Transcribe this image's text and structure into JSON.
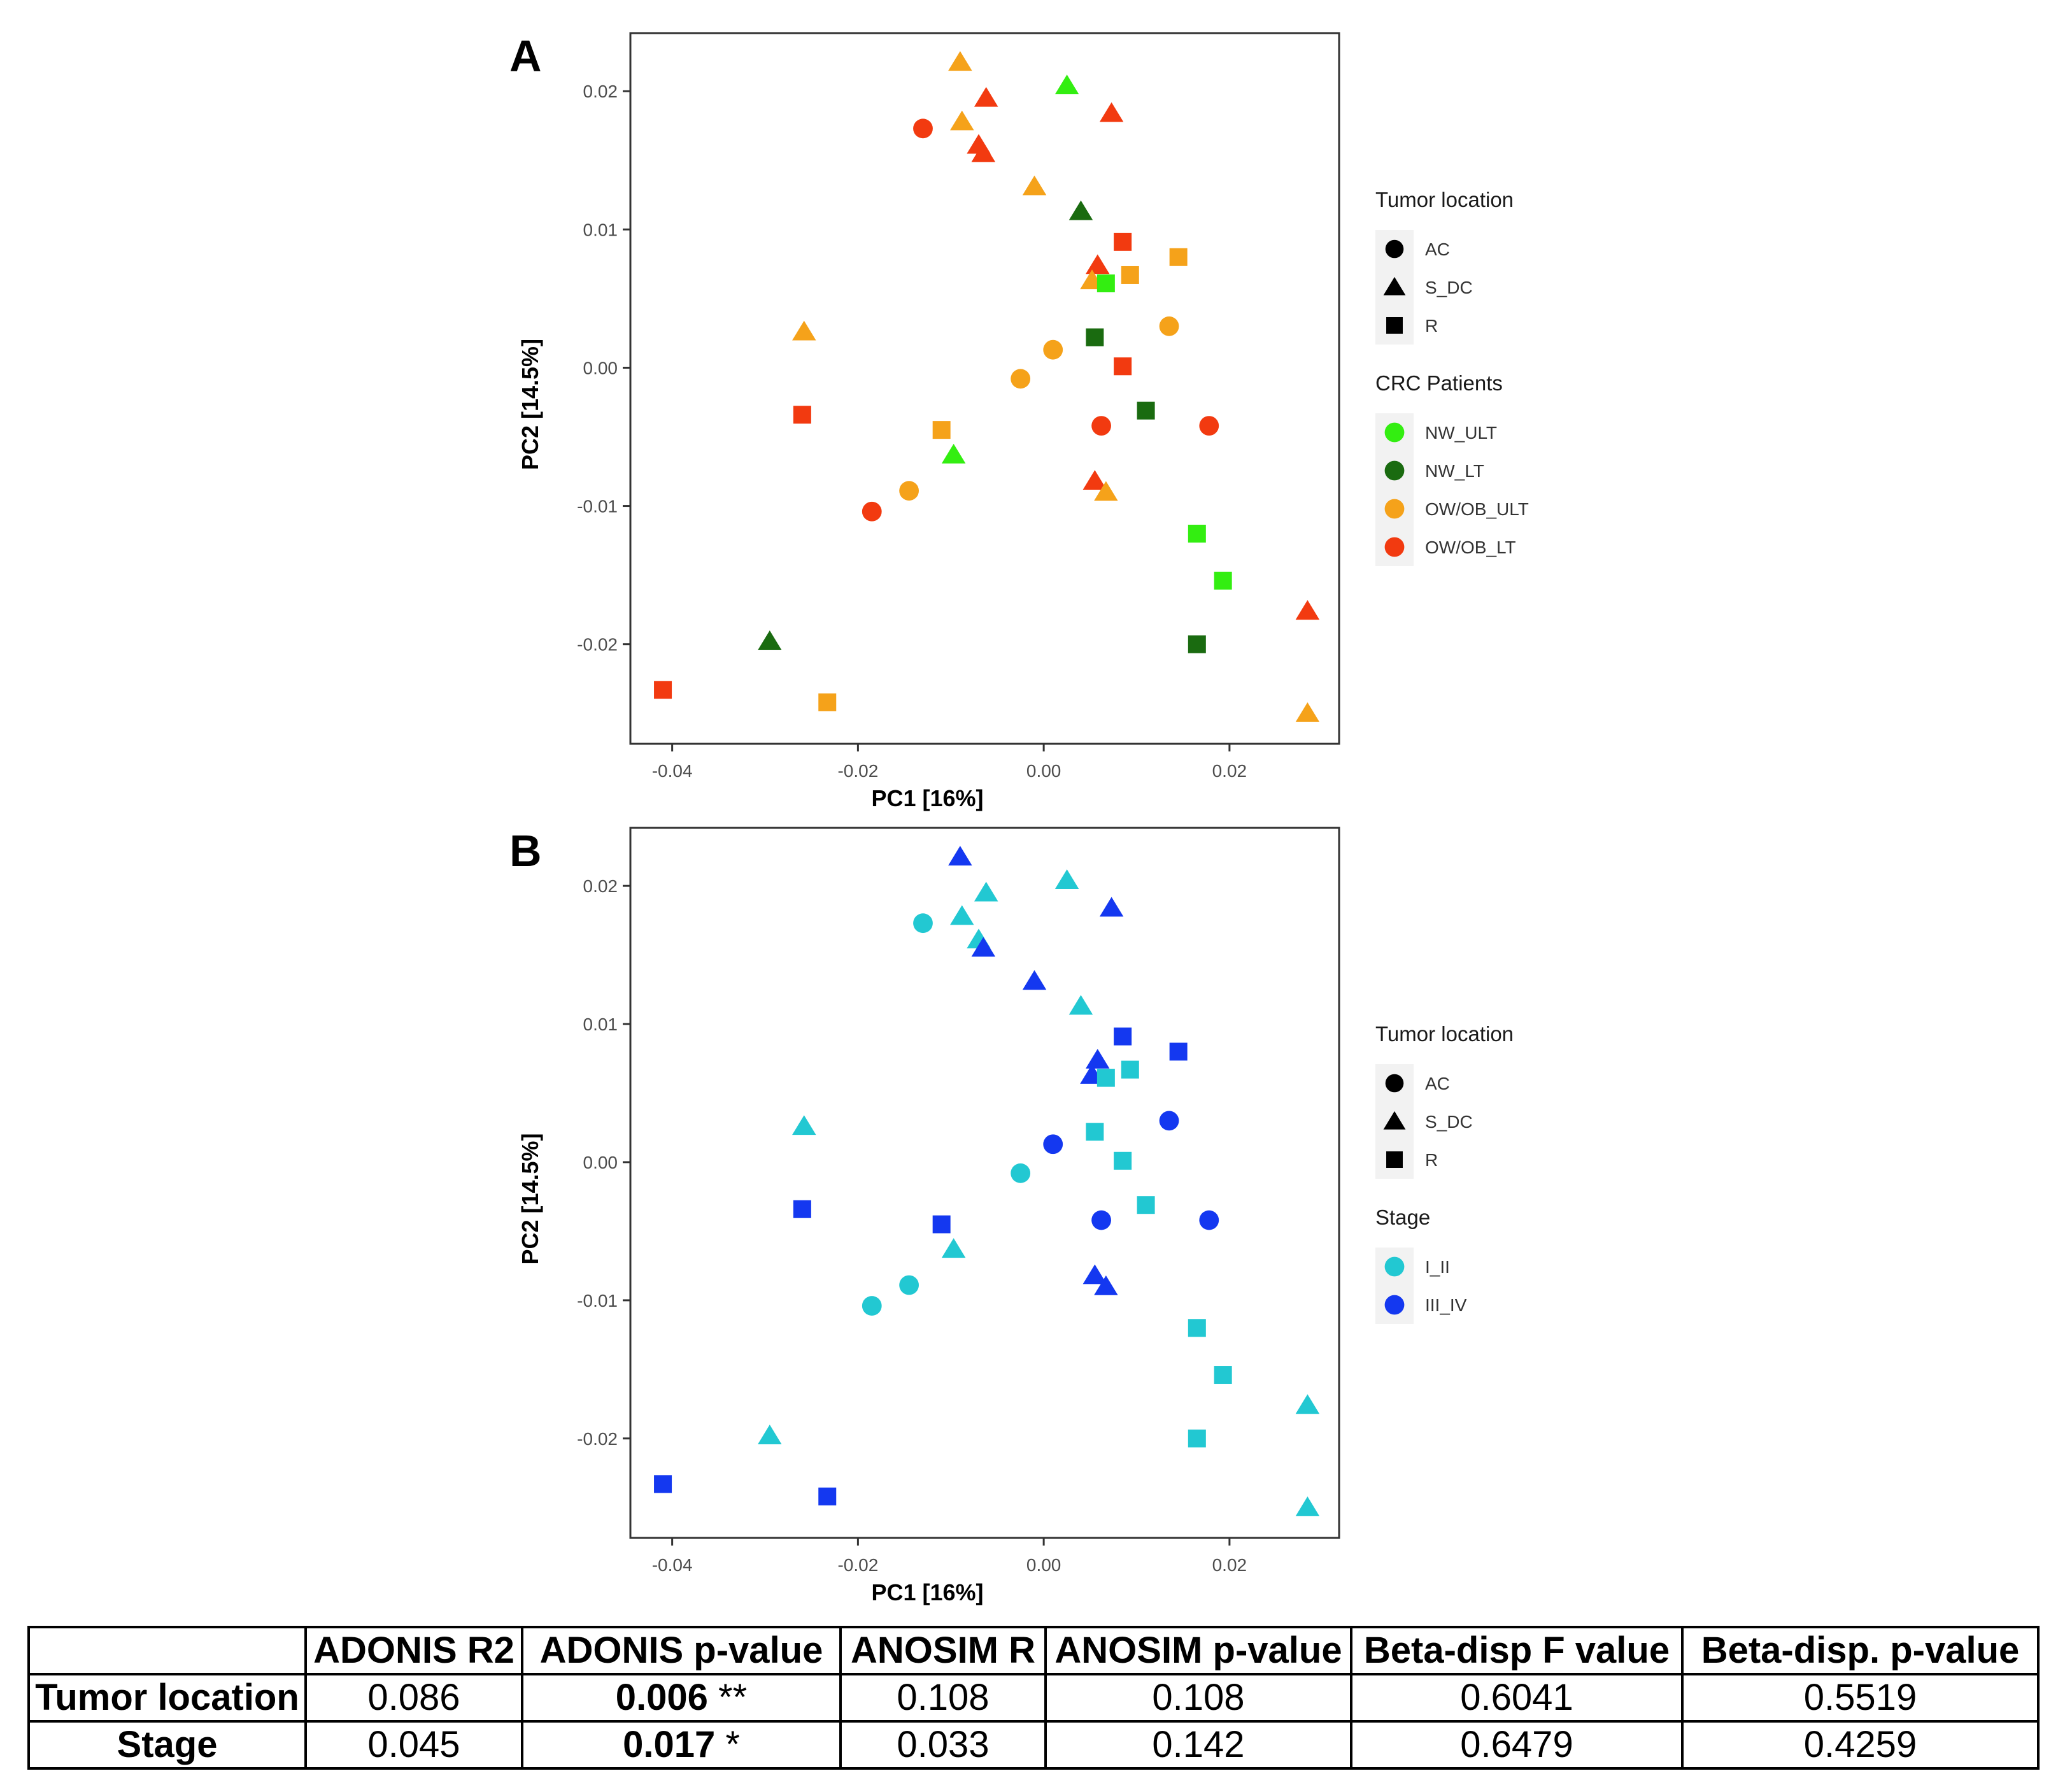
{
  "chart_data": [
    {
      "panel": "A",
      "type": "scatter",
      "xlabel": "PC1 [16%]",
      "ylabel": "PC2 [14.5%]",
      "xlim": [
        -0.0445,
        0.0318
      ],
      "ylim": [
        -0.0272,
        0.0242
      ],
      "x_ticks": [
        -0.04,
        -0.02,
        0.0,
        0.02
      ],
      "x_tick_labels": [
        "-0.04",
        "-0.02",
        "0.00",
        "0.02"
      ],
      "y_ticks": [
        -0.02,
        -0.01,
        0.0,
        0.01,
        0.02
      ],
      "y_tick_labels": [
        "-0.02",
        "-0.01",
        "0.00",
        "0.01",
        "0.02"
      ],
      "shape_legend_title": "Tumor location",
      "shape_legend": [
        {
          "label": "AC",
          "shape": "circle"
        },
        {
          "label": "S_DC",
          "shape": "triangle"
        },
        {
          "label": "R",
          "shape": "square"
        }
      ],
      "color_legend_title": "CRC Patients",
      "color_legend": [
        {
          "label": "NW_ULT",
          "color": "#33ee11"
        },
        {
          "label": "NW_LT",
          "color": "#1a6b10"
        },
        {
          "label": "OW/OB_ULT",
          "color": "#f5a21a"
        },
        {
          "label": "OW/OB_LT",
          "color": "#f23a10"
        }
      ],
      "points": [
        {
          "x": -0.009,
          "y": 0.0221,
          "shape": "triangle",
          "group": "OW/OB_ULT"
        },
        {
          "x": 0.0025,
          "y": 0.0204,
          "shape": "triangle",
          "group": "NW_ULT"
        },
        {
          "x": -0.0062,
          "y": 0.0195,
          "shape": "triangle",
          "group": "OW/OB_LT"
        },
        {
          "x": 0.0073,
          "y": 0.0184,
          "shape": "triangle",
          "group": "OW/OB_LT"
        },
        {
          "x": -0.0088,
          "y": 0.0178,
          "shape": "triangle",
          "group": "OW/OB_ULT"
        },
        {
          "x": -0.013,
          "y": 0.0173,
          "shape": "circle",
          "group": "OW/OB_LT"
        },
        {
          "x": -0.007,
          "y": 0.0161,
          "shape": "triangle",
          "group": "OW/OB_LT"
        },
        {
          "x": -0.0065,
          "y": 0.0155,
          "shape": "triangle",
          "group": "OW/OB_LT"
        },
        {
          "x": -0.001,
          "y": 0.0131,
          "shape": "triangle",
          "group": "OW/OB_ULT"
        },
        {
          "x": 0.004,
          "y": 0.0113,
          "shape": "triangle",
          "group": "NW_LT"
        },
        {
          "x": 0.0085,
          "y": 0.0091,
          "shape": "square",
          "group": "OW/OB_LT"
        },
        {
          "x": 0.0145,
          "y": 0.008,
          "shape": "square",
          "group": "OW/OB_ULT"
        },
        {
          "x": 0.0058,
          "y": 0.0074,
          "shape": "triangle",
          "group": "OW/OB_LT"
        },
        {
          "x": 0.0093,
          "y": 0.0067,
          "shape": "square",
          "group": "OW/OB_ULT"
        },
        {
          "x": 0.0052,
          "y": 0.0063,
          "shape": "triangle",
          "group": "OW/OB_ULT"
        },
        {
          "x": 0.0067,
          "y": 0.0061,
          "shape": "square",
          "group": "NW_ULT"
        },
        {
          "x": 0.0135,
          "y": 0.003,
          "shape": "circle",
          "group": "OW/OB_ULT"
        },
        {
          "x": -0.0258,
          "y": 0.0026,
          "shape": "triangle",
          "group": "OW/OB_ULT"
        },
        {
          "x": 0.0055,
          "y": 0.0022,
          "shape": "square",
          "group": "NW_LT"
        },
        {
          "x": 0.001,
          "y": 0.0013,
          "shape": "circle",
          "group": "OW/OB_ULT"
        },
        {
          "x": 0.0085,
          "y": 0.0001,
          "shape": "square",
          "group": "OW/OB_LT"
        },
        {
          "x": -0.0025,
          "y": -0.0008,
          "shape": "circle",
          "group": "OW/OB_ULT"
        },
        {
          "x": 0.011,
          "y": -0.0031,
          "shape": "square",
          "group": "NW_LT"
        },
        {
          "x": -0.026,
          "y": -0.0034,
          "shape": "square",
          "group": "OW/OB_LT"
        },
        {
          "x": 0.0062,
          "y": -0.0042,
          "shape": "circle",
          "group": "OW/OB_LT"
        },
        {
          "x": 0.0178,
          "y": -0.0042,
          "shape": "circle",
          "group": "OW/OB_LT"
        },
        {
          "x": -0.011,
          "y": -0.0045,
          "shape": "square",
          "group": "OW/OB_ULT"
        },
        {
          "x": -0.0097,
          "y": -0.0063,
          "shape": "triangle",
          "group": "NW_ULT"
        },
        {
          "x": 0.0055,
          "y": -0.0082,
          "shape": "triangle",
          "group": "OW/OB_LT"
        },
        {
          "x": 0.0067,
          "y": -0.009,
          "shape": "triangle",
          "group": "OW/OB_ULT"
        },
        {
          "x": -0.0145,
          "y": -0.0089,
          "shape": "circle",
          "group": "OW/OB_ULT"
        },
        {
          "x": -0.0185,
          "y": -0.0104,
          "shape": "circle",
          "group": "OW/OB_LT"
        },
        {
          "x": 0.0165,
          "y": -0.012,
          "shape": "square",
          "group": "NW_ULT"
        },
        {
          "x": 0.0193,
          "y": -0.0154,
          "shape": "square",
          "group": "NW_ULT"
        },
        {
          "x": 0.0284,
          "y": -0.0176,
          "shape": "triangle",
          "group": "OW/OB_LT"
        },
        {
          "x": -0.0295,
          "y": -0.0198,
          "shape": "triangle",
          "group": "NW_LT"
        },
        {
          "x": 0.0165,
          "y": -0.02,
          "shape": "square",
          "group": "NW_LT"
        },
        {
          "x": -0.041,
          "y": -0.0233,
          "shape": "square",
          "group": "OW/OB_LT"
        },
        {
          "x": -0.0233,
          "y": -0.0242,
          "shape": "square",
          "group": "OW/OB_ULT"
        },
        {
          "x": 0.0284,
          "y": -0.025,
          "shape": "triangle",
          "group": "OW/OB_ULT"
        }
      ]
    },
    {
      "panel": "B",
      "type": "scatter",
      "xlabel": "PC1 [16%]",
      "ylabel": "PC2 [14.5%]",
      "xlim": [
        -0.0445,
        0.0318
      ],
      "ylim": [
        -0.0272,
        0.0242
      ],
      "x_ticks": [
        -0.04,
        -0.02,
        0.0,
        0.02
      ],
      "x_tick_labels": [
        "-0.04",
        "-0.02",
        "0.00",
        "0.02"
      ],
      "y_ticks": [
        -0.02,
        -0.01,
        0.0,
        0.01,
        0.02
      ],
      "y_tick_labels": [
        "-0.02",
        "-0.01",
        "0.00",
        "0.01",
        "0.02"
      ],
      "shape_legend_title": "Tumor location",
      "shape_legend": [
        {
          "label": "AC",
          "shape": "circle"
        },
        {
          "label": "S_DC",
          "shape": "triangle"
        },
        {
          "label": "R",
          "shape": "square"
        }
      ],
      "color_legend_title": "Stage",
      "color_legend": [
        {
          "label": "I_II",
          "color": "#22c8d2"
        },
        {
          "label": "III_IV",
          "color": "#1438f0"
        }
      ],
      "points": [
        {
          "x": -0.009,
          "y": 0.0221,
          "shape": "triangle",
          "group": "III_IV"
        },
        {
          "x": 0.0025,
          "y": 0.0204,
          "shape": "triangle",
          "group": "I_II"
        },
        {
          "x": -0.0062,
          "y": 0.0195,
          "shape": "triangle",
          "group": "I_II"
        },
        {
          "x": 0.0073,
          "y": 0.0184,
          "shape": "triangle",
          "group": "III_IV"
        },
        {
          "x": -0.0088,
          "y": 0.0178,
          "shape": "triangle",
          "group": "I_II"
        },
        {
          "x": -0.013,
          "y": 0.0173,
          "shape": "circle",
          "group": "I_II"
        },
        {
          "x": -0.007,
          "y": 0.0161,
          "shape": "triangle",
          "group": "I_II"
        },
        {
          "x": -0.0065,
          "y": 0.0155,
          "shape": "triangle",
          "group": "III_IV"
        },
        {
          "x": -0.001,
          "y": 0.0131,
          "shape": "triangle",
          "group": "III_IV"
        },
        {
          "x": 0.004,
          "y": 0.0113,
          "shape": "triangle",
          "group": "I_II"
        },
        {
          "x": 0.0085,
          "y": 0.0091,
          "shape": "square",
          "group": "III_IV"
        },
        {
          "x": 0.0145,
          "y": 0.008,
          "shape": "square",
          "group": "III_IV"
        },
        {
          "x": 0.0058,
          "y": 0.0074,
          "shape": "triangle",
          "group": "III_IV"
        },
        {
          "x": 0.0093,
          "y": 0.0067,
          "shape": "square",
          "group": "I_II"
        },
        {
          "x": 0.0052,
          "y": 0.0063,
          "shape": "triangle",
          "group": "III_IV"
        },
        {
          "x": 0.0067,
          "y": 0.0061,
          "shape": "square",
          "group": "I_II"
        },
        {
          "x": 0.0135,
          "y": 0.003,
          "shape": "circle",
          "group": "III_IV"
        },
        {
          "x": -0.0258,
          "y": 0.0026,
          "shape": "triangle",
          "group": "I_II"
        },
        {
          "x": 0.0055,
          "y": 0.0022,
          "shape": "square",
          "group": "I_II"
        },
        {
          "x": 0.001,
          "y": 0.0013,
          "shape": "circle",
          "group": "III_IV"
        },
        {
          "x": 0.0085,
          "y": 0.0001,
          "shape": "square",
          "group": "I_II"
        },
        {
          "x": -0.0025,
          "y": -0.0008,
          "shape": "circle",
          "group": "I_II"
        },
        {
          "x": 0.011,
          "y": -0.0031,
          "shape": "square",
          "group": "I_II"
        },
        {
          "x": -0.026,
          "y": -0.0034,
          "shape": "square",
          "group": "III_IV"
        },
        {
          "x": 0.0062,
          "y": -0.0042,
          "shape": "circle",
          "group": "III_IV"
        },
        {
          "x": 0.0178,
          "y": -0.0042,
          "shape": "circle",
          "group": "III_IV"
        },
        {
          "x": -0.011,
          "y": -0.0045,
          "shape": "square",
          "group": "III_IV"
        },
        {
          "x": -0.0097,
          "y": -0.0063,
          "shape": "triangle",
          "group": "I_II"
        },
        {
          "x": 0.0055,
          "y": -0.0082,
          "shape": "triangle",
          "group": "III_IV"
        },
        {
          "x": 0.0067,
          "y": -0.009,
          "shape": "triangle",
          "group": "III_IV"
        },
        {
          "x": -0.0145,
          "y": -0.0089,
          "shape": "circle",
          "group": "I_II"
        },
        {
          "x": -0.0185,
          "y": -0.0104,
          "shape": "circle",
          "group": "I_II"
        },
        {
          "x": 0.0165,
          "y": -0.012,
          "shape": "square",
          "group": "I_II"
        },
        {
          "x": 0.0193,
          "y": -0.0154,
          "shape": "square",
          "group": "I_II"
        },
        {
          "x": 0.0284,
          "y": -0.0176,
          "shape": "triangle",
          "group": "I_II"
        },
        {
          "x": -0.0295,
          "y": -0.0198,
          "shape": "triangle",
          "group": "I_II"
        },
        {
          "x": 0.0165,
          "y": -0.02,
          "shape": "square",
          "group": "I_II"
        },
        {
          "x": -0.041,
          "y": -0.0233,
          "shape": "square",
          "group": "III_IV"
        },
        {
          "x": -0.0233,
          "y": -0.0242,
          "shape": "square",
          "group": "III_IV"
        },
        {
          "x": 0.0284,
          "y": -0.025,
          "shape": "triangle",
          "group": "I_II"
        }
      ]
    },
    {
      "type": "table",
      "columns": [
        "",
        "ADONIS R2",
        "ADONIS p-value",
        "ANOSIM R",
        "ANOSIM p-value",
        "Beta-disp F value",
        "Beta-disp. p-value"
      ],
      "rows": [
        [
          "Tumor location",
          "0.086",
          "0.006 **",
          "0.108",
          "0.108",
          "0.6041",
          "0.5519"
        ],
        [
          "Stage",
          "0.045",
          "0.017 *",
          "0.033",
          "0.142",
          "0.6479",
          "0.4259"
        ]
      ]
    }
  ],
  "table": {
    "headers": [
      "",
      "ADONIS R2",
      "ADONIS p-value",
      "ANOSIM R",
      "ANOSIM p-value",
      "Beta-disp F value",
      "Beta-disp. p-value"
    ],
    "rows": [
      {
        "label": "Tumor location",
        "adonis_r2": "0.086",
        "adonis_p": "0.006",
        "adonis_sig": " **",
        "anosim_r": "0.108",
        "anosim_p": "0.108",
        "betadisp_f": "0.6041",
        "betadisp_p": "0.5519"
      },
      {
        "label": "Stage",
        "adonis_r2": "0.045",
        "adonis_p": "0.017",
        "adonis_sig": " *",
        "anosim_r": "0.033",
        "anosim_p": "0.142",
        "betadisp_f": "0.6479",
        "betadisp_p": "0.4259"
      }
    ]
  }
}
